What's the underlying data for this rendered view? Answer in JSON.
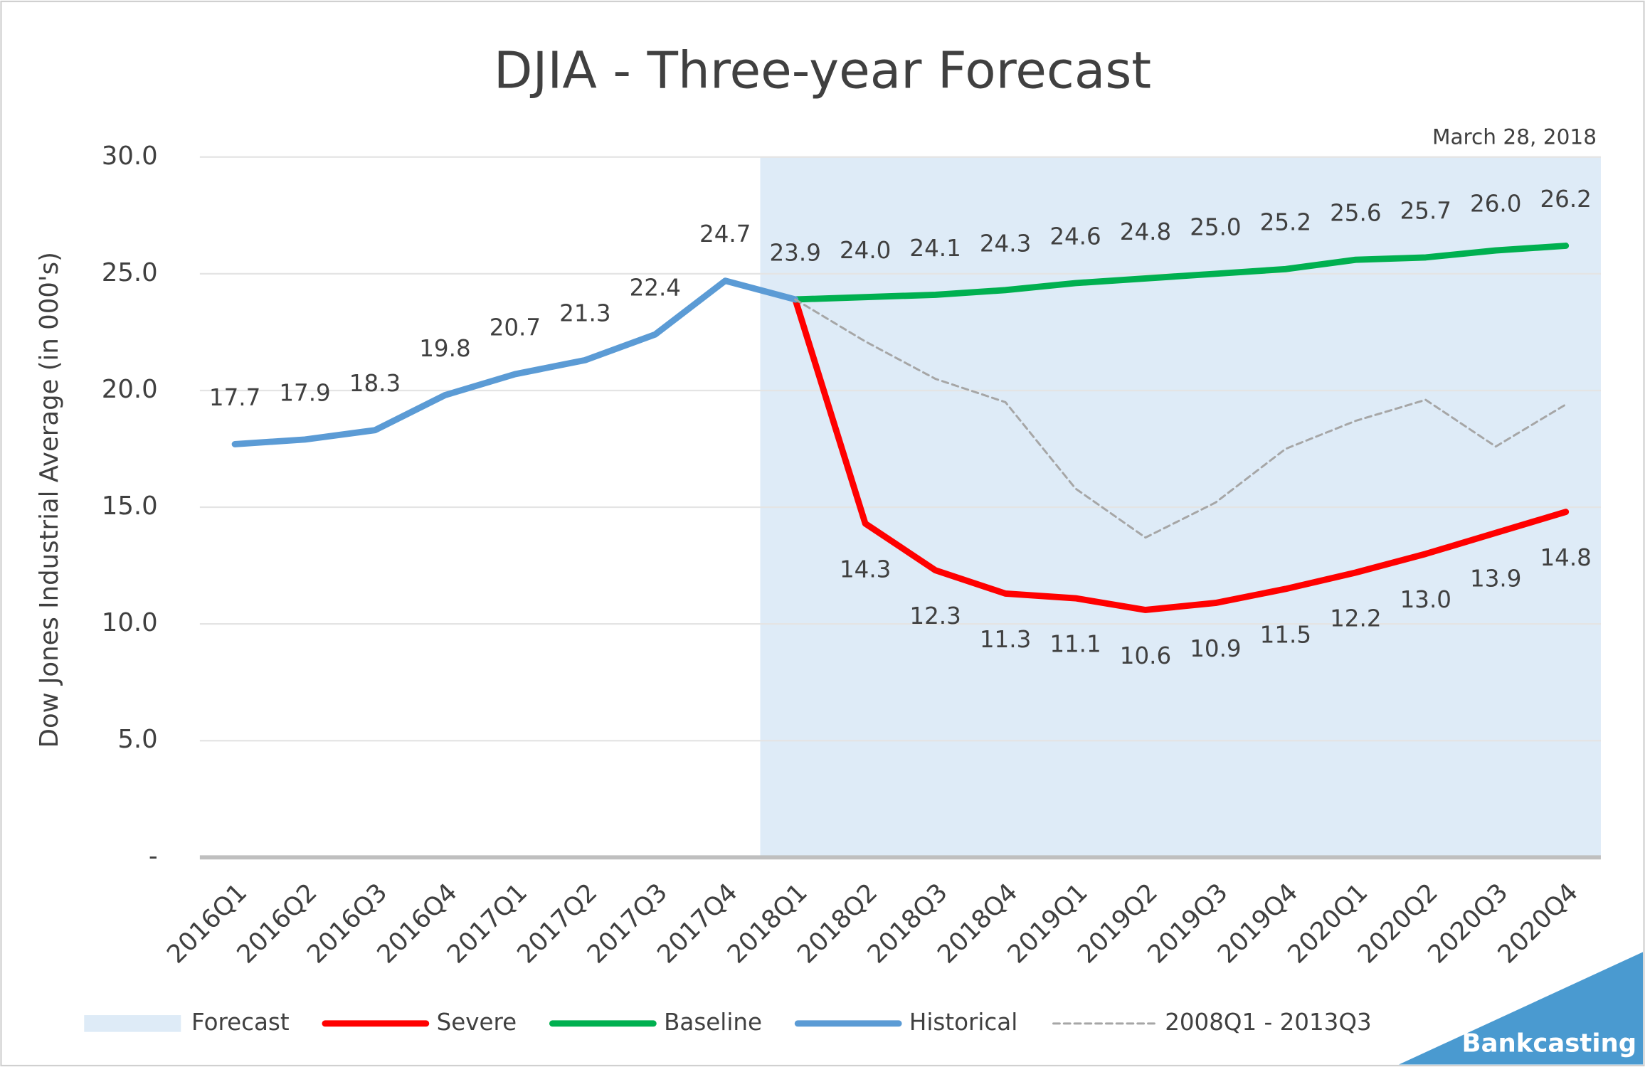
{
  "chart_data": {
    "type": "line",
    "title": "DJIA - Three-year Forecast",
    "annotation": "March 28, 2018",
    "ylabel": "Dow Jones Industrial Average (in 000's)",
    "brand": "Bankcasting",
    "categories": [
      "2016Q1",
      "2016Q2",
      "2016Q3",
      "2016Q4",
      "2017Q1",
      "2017Q2",
      "2017Q3",
      "2017Q4",
      "2018Q1",
      "2018Q2",
      "2018Q3",
      "2018Q4",
      "2019Q1",
      "2019Q2",
      "2019Q3",
      "2019Q4",
      "2020Q1",
      "2020Q2",
      "2020Q3",
      "2020Q4"
    ],
    "shade": {
      "name": "Forecast",
      "color": "#deebf7",
      "from_category": "2018Q1"
    },
    "series": [
      {
        "name": "Severe",
        "color": "#ff0000",
        "width": 6,
        "label_side": "below",
        "values": [
          null,
          null,
          null,
          null,
          null,
          null,
          null,
          null,
          23.9,
          14.3,
          12.3,
          11.3,
          11.1,
          10.6,
          10.9,
          11.5,
          12.2,
          13.0,
          13.9,
          14.8
        ],
        "value_labels": [
          null,
          null,
          null,
          null,
          null,
          null,
          null,
          null,
          null,
          "14.3",
          "12.3",
          "11.3",
          "11.1",
          "10.6",
          "10.9",
          "11.5",
          "12.2",
          "13.0",
          "13.9",
          "14.8"
        ]
      },
      {
        "name": "Baseline",
        "color": "#00b050",
        "width": 6,
        "label_side": "above",
        "values": [
          null,
          null,
          null,
          null,
          null,
          null,
          null,
          null,
          23.9,
          24.0,
          24.1,
          24.3,
          24.6,
          24.8,
          25.0,
          25.2,
          25.6,
          25.7,
          26.0,
          26.2
        ],
        "value_labels": [
          null,
          null,
          null,
          null,
          null,
          null,
          null,
          null,
          null,
          "24.0",
          "24.1",
          "24.3",
          "24.6",
          "24.8",
          "25.0",
          "25.2",
          "25.6",
          "25.7",
          "26.0",
          "26.2"
        ]
      },
      {
        "name": "Historical",
        "color": "#5b9bd5",
        "width": 6,
        "label_side": "above",
        "values": [
          17.7,
          17.9,
          18.3,
          19.8,
          20.7,
          21.3,
          22.4,
          24.7,
          23.9,
          null,
          null,
          null,
          null,
          null,
          null,
          null,
          null,
          null,
          null,
          null
        ],
        "value_labels": [
          "17.7",
          "17.9",
          "18.3",
          "19.8",
          "20.7",
          "21.3",
          "22.4",
          "24.7",
          "23.9",
          null,
          null,
          null,
          null,
          null,
          null,
          null,
          null,
          null,
          null,
          null
        ]
      },
      {
        "name": "2008Q1 - 2013Q3",
        "color": "#a6a6a6",
        "width": 2,
        "dashed": true,
        "values": [
          null,
          null,
          null,
          null,
          null,
          null,
          null,
          null,
          23.9,
          22.1,
          20.5,
          19.5,
          15.8,
          13.7,
          15.2,
          17.5,
          18.7,
          19.6,
          17.6,
          19.4
        ]
      }
    ],
    "ylim": [
      0,
      30
    ],
    "yticks": [
      {
        "value": 0,
        "label": "-"
      },
      {
        "value": 5,
        "label": "5.0"
      },
      {
        "value": 10,
        "label": "10.0"
      },
      {
        "value": 15,
        "label": "15.0"
      },
      {
        "value": 20,
        "label": "20.0"
      },
      {
        "value": 25,
        "label": "25.0"
      },
      {
        "value": 30,
        "label": "30.0"
      }
    ],
    "grid": true
  }
}
